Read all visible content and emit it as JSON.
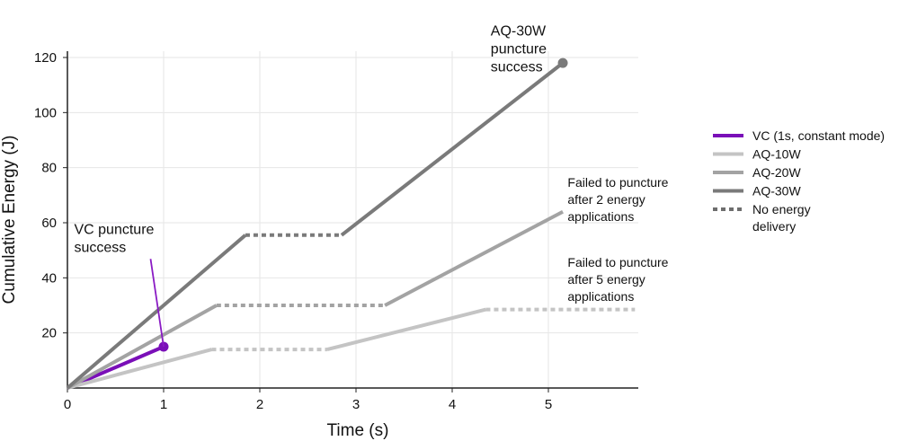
{
  "chart_data": {
    "type": "line",
    "xlabel": "Time (s)",
    "ylabel": "Cumulative Energy (J)",
    "xlim": [
      0,
      5.9
    ],
    "ylim": [
      0,
      120
    ],
    "x_ticks": [
      "0",
      "1",
      "2",
      "3",
      "4",
      "5"
    ],
    "y_ticks": [
      "20",
      "40",
      "60",
      "80",
      "100",
      "120"
    ],
    "grid": true,
    "legend_position": "right",
    "legend": [
      {
        "label": "VC (1s, constant mode)",
        "color": "#7a0fb8",
        "style": "solid"
      },
      {
        "label": "AQ-10W",
        "color": "#c4c4c4",
        "style": "solid"
      },
      {
        "label": "AQ-20W",
        "color": "#a3a3a3",
        "style": "solid"
      },
      {
        "label": "AQ-30W",
        "color": "#7a7a7a",
        "style": "solid"
      },
      {
        "label": "No energy delivery",
        "color": "#6e6e6e",
        "style": "dotted"
      }
    ],
    "series": [
      {
        "name": "VC (1s, constant mode)",
        "color": "#7a0fb8",
        "segments": [
          {
            "style": "solid",
            "points": [
              [
                0,
                0
              ],
              [
                1,
                15
              ]
            ]
          }
        ],
        "endpoint": [
          1,
          15
        ]
      },
      {
        "name": "AQ-10W",
        "color": "#c4c4c4",
        "segments": [
          {
            "style": "solid",
            "points": [
              [
                0,
                0
              ],
              [
                1.5,
                14
              ]
            ]
          },
          {
            "style": "dotted",
            "points": [
              [
                1.5,
                14
              ],
              [
                2.7,
                14
              ]
            ]
          },
          {
            "style": "solid",
            "points": [
              [
                2.7,
                14
              ],
              [
                4.35,
                28.5
              ]
            ]
          },
          {
            "style": "dotted",
            "points": [
              [
                4.35,
                28.5
              ],
              [
                5.9,
                28.5
              ]
            ]
          }
        ]
      },
      {
        "name": "AQ-20W",
        "color": "#a3a3a3",
        "segments": [
          {
            "style": "solid",
            "points": [
              [
                0,
                0
              ],
              [
                1.55,
                30
              ]
            ]
          },
          {
            "style": "dotted",
            "points": [
              [
                1.55,
                30
              ],
              [
                3.3,
                30
              ]
            ]
          },
          {
            "style": "solid",
            "points": [
              [
                3.3,
                30
              ],
              [
                5.15,
                64
              ]
            ]
          }
        ]
      },
      {
        "name": "AQ-30W",
        "color": "#7a7a7a",
        "segments": [
          {
            "style": "solid",
            "points": [
              [
                0,
                0
              ],
              [
                1.85,
                55.5
              ]
            ]
          },
          {
            "style": "dotted",
            "points": [
              [
                1.85,
                55.5
              ],
              [
                2.85,
                55.5
              ]
            ]
          },
          {
            "style": "solid",
            "points": [
              [
                2.85,
                55.5
              ],
              [
                5.15,
                118
              ]
            ]
          }
        ],
        "endpoint": [
          5.15,
          118
        ]
      }
    ],
    "annotations": [
      {
        "lines": [
          "AQ-30W",
          "puncture",
          "success"
        ],
        "color": "#7a7a7a",
        "at": [
          4.4,
          128
        ],
        "pointer_to": [
          5.15,
          118
        ]
      },
      {
        "lines": [
          "VC puncture",
          "success"
        ],
        "color": "#8a1bc4",
        "at": [
          0.07,
          56
        ],
        "pointer_to": [
          1,
          15
        ]
      },
      {
        "lines": [
          "Failed to puncture",
          "after 2 energy",
          "applications"
        ],
        "color": "#111111",
        "at": [
          5.2,
          73
        ]
      },
      {
        "lines": [
          "Failed to puncture",
          "after 5 energy",
          "applications"
        ],
        "color": "#111111",
        "at": [
          5.2,
          44
        ]
      }
    ]
  }
}
